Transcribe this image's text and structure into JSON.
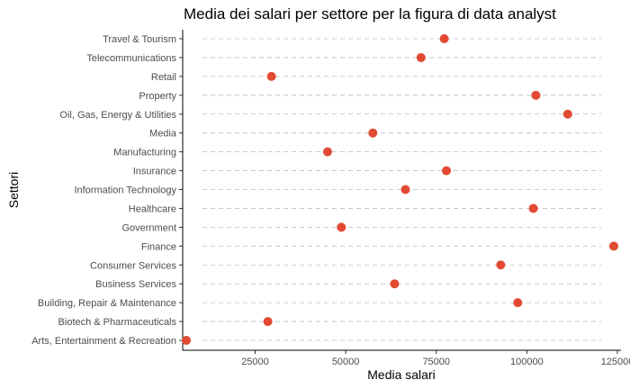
{
  "chart_data": {
    "type": "scatter",
    "title": "Media dei salari per settore per la figura di data analyst",
    "xlabel": "Media salari",
    "ylabel": "Settori",
    "xlim": [
      5000,
      126000
    ],
    "xticks": [
      25000,
      50000,
      75000,
      100000,
      125000
    ],
    "xtick_labels": [
      "25000",
      "50000",
      "75000",
      "100000",
      "125000"
    ],
    "grid": "horizontal-dashed",
    "point_color": "#e24a33",
    "categories": [
      "Arts, Entertainment & Recreation",
      "Biotech & Pharmaceuticals",
      "Building, Repair & Maintenance",
      "Business Services",
      "Consumer Services",
      "Finance",
      "Government",
      "Healthcare",
      "Information Technology",
      "Insurance",
      "Manufacturing",
      "Media",
      "Oil, Gas, Energy & Utilities",
      "Property",
      "Retail",
      "Telecommunications",
      "Travel & Tourism"
    ],
    "values": [
      6000,
      28500,
      97500,
      63500,
      92800,
      124000,
      48800,
      101800,
      66500,
      77800,
      45000,
      57500,
      111300,
      102500,
      29500,
      70800,
      77200
    ]
  }
}
